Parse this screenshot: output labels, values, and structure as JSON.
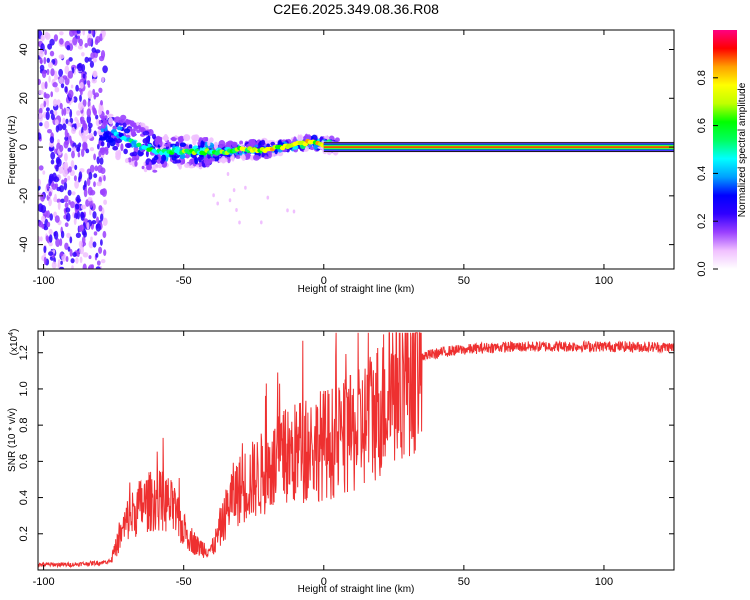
{
  "title": "C2E6.2025.349.08.36.R08",
  "chart_data": [
    {
      "type": "heatmap",
      "name": "spectrogram",
      "xlabel": "Height of straight line (km)",
      "ylabel": "Frequency (Hz)",
      "xlim": [
        -102,
        125
      ],
      "ylim": [
        -50,
        48
      ],
      "xticks": [
        -100,
        -50,
        0,
        50,
        100
      ],
      "yticks": [
        -40,
        -20,
        0,
        20,
        40
      ],
      "colorbar": {
        "label": "Normalized spectral amplitude",
        "ticks": [
          "0.0",
          "0.2",
          "0.4",
          "0.6",
          "0.8"
        ],
        "tick_values": [
          0.0,
          0.2,
          0.4,
          0.6,
          0.8
        ],
        "range": [
          0,
          1
        ],
        "colors": [
          "#ffffff",
          "#f0c0ff",
          "#9a40ff",
          "#3000ff",
          "#0000ff",
          "#00a0ff",
          "#00ffff",
          "#00ff60",
          "#00ff00",
          "#c0ff00",
          "#ffff00",
          "#ffa000",
          "#ff0000",
          "#ff0080"
        ]
      },
      "ridge": [
        {
          "x": -75,
          "f": 6
        },
        {
          "x": -70,
          "f": 3
        },
        {
          "x": -65,
          "f": 0
        },
        {
          "x": -60,
          "f": -2
        },
        {
          "x": -55,
          "f": -2
        },
        {
          "x": -50,
          "f": -2
        },
        {
          "x": -45,
          "f": -2
        },
        {
          "x": -40,
          "f": -2
        },
        {
          "x": -35,
          "f": -2
        },
        {
          "x": -30,
          "f": -1
        },
        {
          "x": -25,
          "f": -1
        },
        {
          "x": -20,
          "f": -1
        },
        {
          "x": -15,
          "f": 0
        },
        {
          "x": -10,
          "f": 1
        },
        {
          "x": -5,
          "f": 2
        },
        {
          "x": 0,
          "f": 1
        },
        {
          "x": 10,
          "f": 0
        },
        {
          "x": 30,
          "f": 0
        },
        {
          "x": 60,
          "f": 0
        },
        {
          "x": 90,
          "f": 0
        },
        {
          "x": 125,
          "f": 0
        }
      ],
      "noise_region_x": [
        -102,
        -78
      ]
    },
    {
      "type": "line",
      "name": "snr",
      "xlabel": "Height of straight line (km)",
      "ylabel": "SNR (10 * v/v)",
      "scale_note": "(x10",
      "scale_exp": "4",
      "xlim": [
        -102,
        125
      ],
      "ylim": [
        0,
        13200
      ],
      "xticks": [
        -100,
        -50,
        0,
        50,
        100
      ],
      "yticks": [
        2000,
        4000,
        6000,
        8000,
        10000,
        12000
      ],
      "ytick_labels": [
        "0.2",
        "0.4",
        "0.6",
        "0.8",
        "1.0",
        "1.2"
      ],
      "color": "#ee3030",
      "envelope": [
        {
          "x": -102,
          "v": 300
        },
        {
          "x": -90,
          "v": 300
        },
        {
          "x": -80,
          "v": 400
        },
        {
          "x": -76,
          "v": 500
        },
        {
          "x": -73,
          "v": 1700
        },
        {
          "x": -70,
          "v": 2800
        },
        {
          "x": -65,
          "v": 3600
        },
        {
          "x": -60,
          "v": 3900
        },
        {
          "x": -55,
          "v": 3600
        },
        {
          "x": -50,
          "v": 2200
        },
        {
          "x": -45,
          "v": 1300
        },
        {
          "x": -40,
          "v": 1100
        },
        {
          "x": -37,
          "v": 2200
        },
        {
          "x": -33,
          "v": 4000
        },
        {
          "x": -28,
          "v": 4700
        },
        {
          "x": -22,
          "v": 5300
        },
        {
          "x": -15,
          "v": 6000
        },
        {
          "x": -8,
          "v": 6600
        },
        {
          "x": -2,
          "v": 6900
        },
        {
          "x": 5,
          "v": 7100
        },
        {
          "x": 12,
          "v": 7600
        },
        {
          "x": 20,
          "v": 9000
        },
        {
          "x": 28,
          "v": 11000
        },
        {
          "x": 35,
          "v": 11800
        },
        {
          "x": 45,
          "v": 12100
        },
        {
          "x": 60,
          "v": 12300
        },
        {
          "x": 80,
          "v": 12350
        },
        {
          "x": 100,
          "v": 12350
        },
        {
          "x": 125,
          "v": 12300
        }
      ]
    }
  ]
}
